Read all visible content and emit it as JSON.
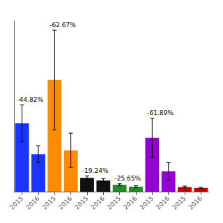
{
  "chart_data": {
    "type": "bar",
    "categories": [
      "2015",
      "2016",
      "2015",
      "2016",
      "2015",
      "2016",
      "2015",
      "2016",
      "2015",
      "2016",
      "2015",
      "2016"
    ],
    "values": [
      5.2,
      2.85,
      8.5,
      3.15,
      1.05,
      0.85,
      0.52,
      0.38,
      4.1,
      1.55,
      0.35,
      0.28
    ],
    "errors": [
      1.4,
      0.65,
      3.8,
      1.3,
      0.15,
      0.13,
      0.08,
      0.07,
      1.5,
      0.65,
      0.07,
      0.06
    ],
    "colors": [
      "#1a35ff",
      "#1a35ff",
      "#ff8c00",
      "#ff8c00",
      "#111111",
      "#111111",
      "#228B22",
      "#228B22",
      "#9400d3",
      "#9400d3",
      "#cc0000",
      "#cc0000"
    ],
    "annotations": [
      "-44.82%",
      null,
      "-62.67%",
      null,
      "-19.24%",
      null,
      "-25.65%",
      null,
      "-61.89%",
      null,
      null,
      null
    ],
    "ylim": [
      0,
      13
    ],
    "grid": false,
    "tick_labels": "x"
  }
}
